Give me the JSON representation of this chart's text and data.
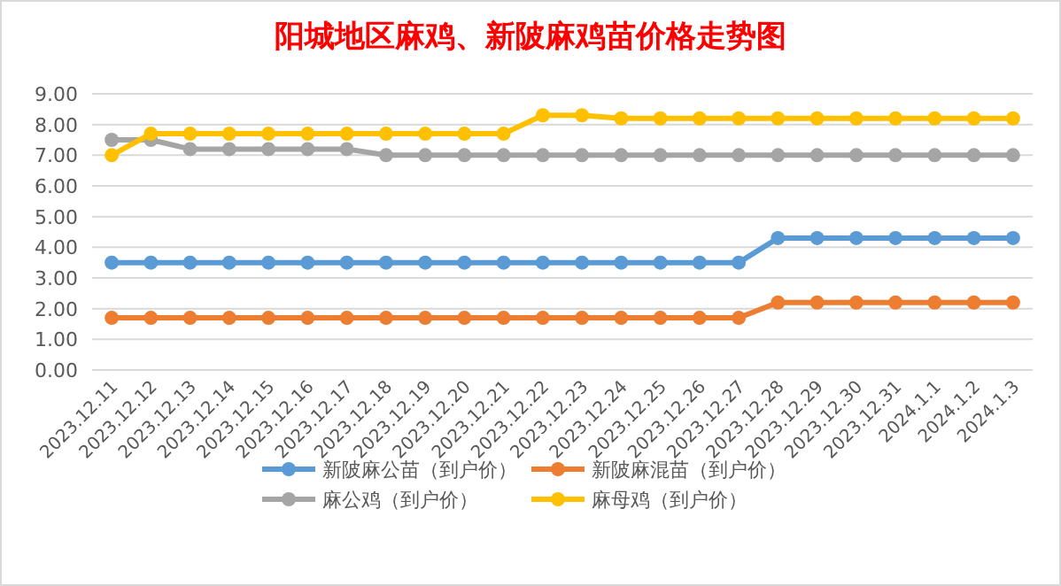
{
  "chart_data": {
    "type": "line",
    "title": "阳城地区麻鸡、新陂麻鸡苗价格走势图",
    "categories": [
      "2023.12.11",
      "2023.12.12",
      "2023.12.13",
      "2023.12.14",
      "2023.12.15",
      "2023.12.16",
      "2023.12.17",
      "2023.12.18",
      "2023.12.19",
      "2023.12.20",
      "2023.12.21",
      "2023.12.22",
      "2023.12.23",
      "2023.12.24",
      "2023.12.25",
      "2023.12.26",
      "2023.12.27",
      "2023.12.28",
      "2023.12.29",
      "2023.12.30",
      "2023.12.31",
      "2024.1.1",
      "2024.1.2",
      "2024.1.3"
    ],
    "series": [
      {
        "name": "新陂麻公苗（到户价）",
        "color": "#5b9bd5",
        "values": [
          3.5,
          3.5,
          3.5,
          3.5,
          3.5,
          3.5,
          3.5,
          3.5,
          3.5,
          3.5,
          3.5,
          3.5,
          3.5,
          3.5,
          3.5,
          3.5,
          3.5,
          4.3,
          4.3,
          4.3,
          4.3,
          4.3,
          4.3,
          4.3
        ]
      },
      {
        "name": "新陂麻混苗（到户价）",
        "color": "#ed7d31",
        "values": [
          1.7,
          1.7,
          1.7,
          1.7,
          1.7,
          1.7,
          1.7,
          1.7,
          1.7,
          1.7,
          1.7,
          1.7,
          1.7,
          1.7,
          1.7,
          1.7,
          1.7,
          2.2,
          2.2,
          2.2,
          2.2,
          2.2,
          2.2,
          2.2
        ]
      },
      {
        "name": "麻公鸡（到户价）",
        "color": "#a5a5a5",
        "values": [
          7.5,
          7.5,
          7.2,
          7.2,
          7.2,
          7.2,
          7.2,
          7.0,
          7.0,
          7.0,
          7.0,
          7.0,
          7.0,
          7.0,
          7.0,
          7.0,
          7.0,
          7.0,
          7.0,
          7.0,
          7.0,
          7.0,
          7.0,
          7.0
        ]
      },
      {
        "name": "麻母鸡（到户价）",
        "color": "#ffc000",
        "values": [
          7.0,
          7.7,
          7.7,
          7.7,
          7.7,
          7.7,
          7.7,
          7.7,
          7.7,
          7.7,
          7.7,
          8.3,
          8.3,
          8.2,
          8.2,
          8.2,
          8.2,
          8.2,
          8.2,
          8.2,
          8.2,
          8.2,
          8.2,
          8.2
        ]
      }
    ],
    "ylim": [
      0,
      9
    ],
    "yticks": [
      {
        "value": 0,
        "label": "0.00"
      },
      {
        "value": 1,
        "label": "1.00"
      },
      {
        "value": 2,
        "label": "2.00"
      },
      {
        "value": 3,
        "label": "3.00"
      },
      {
        "value": 4,
        "label": "4.00"
      },
      {
        "value": 5,
        "label": "5.00"
      },
      {
        "value": 6,
        "label": "6.00"
      },
      {
        "value": 7,
        "label": "7.00"
      },
      {
        "value": 8,
        "label": "8.00"
      },
      {
        "value": 9,
        "label": "9.00"
      }
    ],
    "grid": "y",
    "legend": "bottom",
    "marker": "circle"
  }
}
